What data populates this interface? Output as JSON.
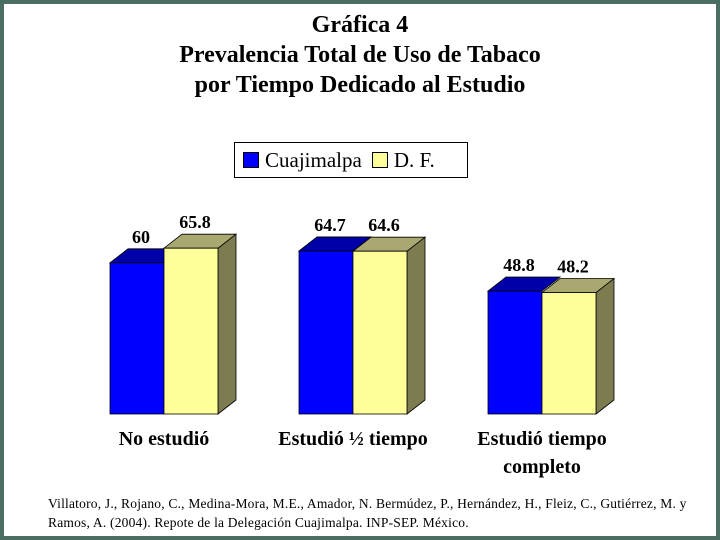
{
  "title_lines": [
    "Gráfica 4",
    "Prevalencia Total de Uso de Tabaco",
    "por Tiempo Dedicado al Estudio"
  ],
  "colors": {
    "cuajimalpa": "#0000ff",
    "cuajimalpa_top": "#0000a8",
    "df": "#ffff99",
    "df_top": "#a8a870",
    "side": "#7c7c50",
    "frame": "#4a6e62"
  },
  "chart_data": {
    "type": "bar",
    "title": "Gráfica 4 Prevalencia Total de Uso de Tabaco por Tiempo Dedicado al Estudio",
    "categories": [
      "No estudió",
      "Estudió ½ tiempo",
      "Estudió tiempo completo"
    ],
    "category_lines": [
      [
        "No estudió"
      ],
      [
        "Estudió ½ tiempo"
      ],
      [
        "Estudió tiempo",
        "completo"
      ]
    ],
    "series": [
      {
        "name": "Cuajimalpa",
        "values": [
          60,
          64.7,
          48.8
        ],
        "labels": [
          "60",
          "64.7",
          "48.8"
        ]
      },
      {
        "name": "D. F.",
        "values": [
          65.8,
          64.6,
          48.2
        ],
        "labels": [
          "65.8",
          "64.6",
          "48.2"
        ]
      }
    ],
    "ylim": [
      0,
      100
    ],
    "legend": "top-center",
    "grid": false,
    "style": "3d"
  },
  "citation": "Villatoro, J., Rojano, C., Medina-Mora, M.E., Amador, N. Bermúdez, P., Hernández, H., Fleiz, C., Gutiérrez, M. y Ramos, A. (2004). Repote de la Delegación Cuajimalpa. INP-SEP. México."
}
